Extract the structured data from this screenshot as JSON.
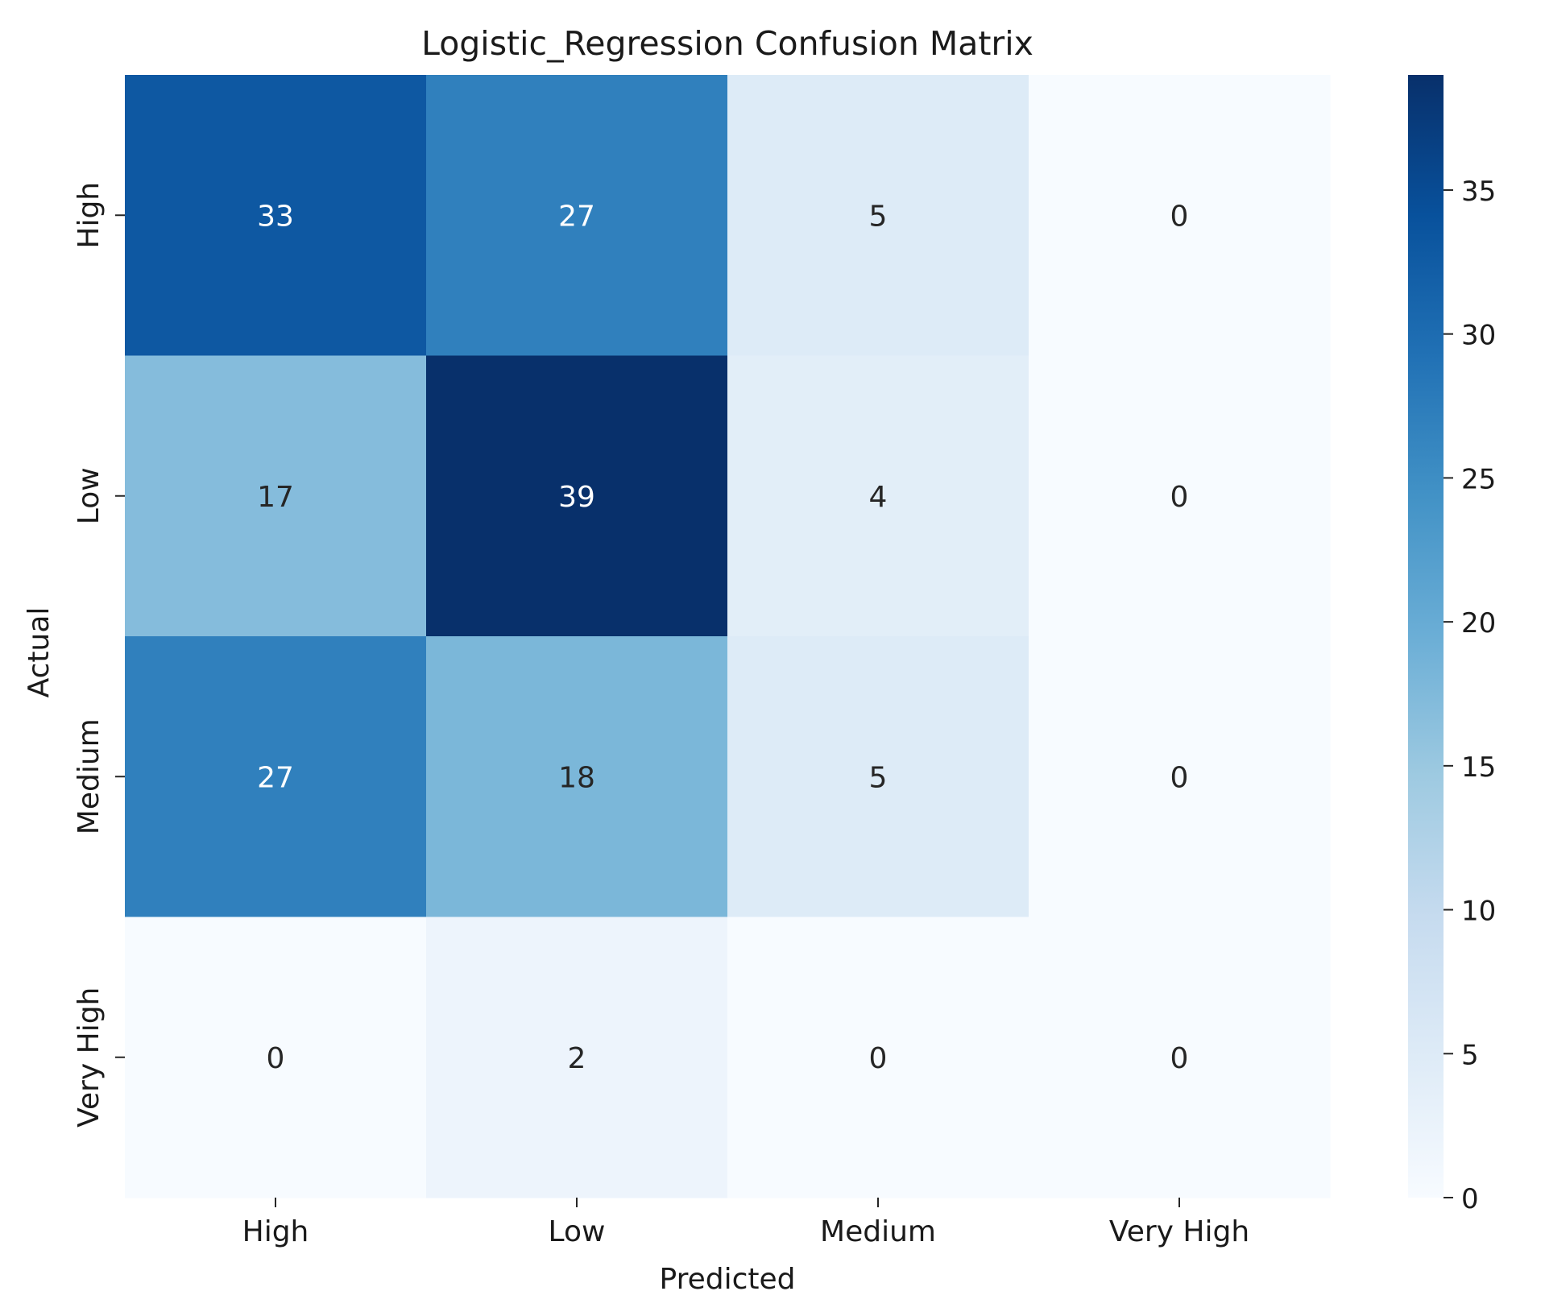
{
  "chart_data": {
    "type": "heatmap",
    "title": "Logistic_Regression Confusion Matrix",
    "xlabel": "Predicted",
    "ylabel": "Actual",
    "x_categories": [
      "High",
      "Low",
      "Medium",
      "Very High"
    ],
    "y_categories": [
      "High",
      "Low",
      "Medium",
      "Very High"
    ],
    "values": [
      [
        33,
        27,
        5,
        0
      ],
      [
        17,
        39,
        4,
        0
      ],
      [
        27,
        18,
        5,
        0
      ],
      [
        0,
        2,
        0,
        0
      ]
    ],
    "colormap": "Blues",
    "colorbar": {
      "range": [
        0,
        39
      ],
      "ticks": [
        0,
        5,
        10,
        15,
        20,
        25,
        30,
        35
      ]
    }
  }
}
